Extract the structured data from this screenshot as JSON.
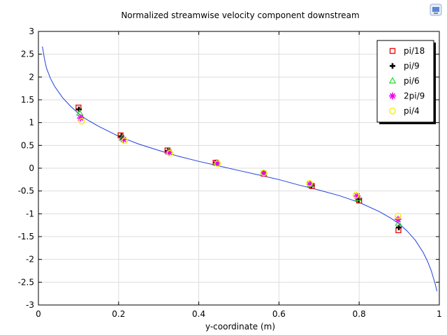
{
  "chart_data": {
    "type": "line",
    "title": "Normalized streamwise velocity component downstream",
    "xlabel": "y-coordinate (m)",
    "ylabel": "",
    "xlim": [
      0,
      1
    ],
    "ylim": [
      -3,
      3
    ],
    "xticks": [
      0,
      0.2,
      0.4,
      0.6,
      0.8,
      1
    ],
    "yticks": [
      -3,
      -2.5,
      -2,
      -1.5,
      -1,
      -0.5,
      0,
      0.5,
      1,
      1.5,
      2,
      2.5,
      3
    ],
    "grid": true,
    "legend_position": "top-right",
    "curve": {
      "color": "#1f3fdc",
      "x": [
        0.01,
        0.015,
        0.02,
        0.03,
        0.04,
        0.06,
        0.08,
        0.1,
        0.12,
        0.15,
        0.2,
        0.25,
        0.3,
        0.35,
        0.4,
        0.45,
        0.5,
        0.55,
        0.6,
        0.65,
        0.7,
        0.75,
        0.8,
        0.85,
        0.88,
        0.9,
        0.92,
        0.94,
        0.96,
        0.97,
        0.98,
        0.99,
        0.994
      ],
      "y": [
        2.67,
        2.4,
        2.2,
        1.97,
        1.8,
        1.55,
        1.36,
        1.2,
        1.07,
        0.92,
        0.7,
        0.53,
        0.39,
        0.26,
        0.15,
        0.05,
        -0.05,
        -0.15,
        -0.25,
        -0.37,
        -0.48,
        -0.6,
        -0.75,
        -0.95,
        -1.1,
        -1.22,
        -1.38,
        -1.58,
        -1.85,
        -2.03,
        -2.25,
        -2.55,
        -2.7
      ]
    },
    "series": [
      {
        "name": "pi/18",
        "marker": "square",
        "color": "#ee1111",
        "x": [
          0.1,
          0.205,
          0.322,
          0.442,
          0.562,
          0.682,
          0.8,
          0.898
        ],
        "y": [
          1.33,
          0.72,
          0.39,
          0.12,
          -0.12,
          -0.39,
          -0.71,
          -1.36
        ]
      },
      {
        "name": "pi/9",
        "marker": "plus",
        "color": "#000000",
        "x": [
          0.101,
          0.207,
          0.323,
          0.443,
          0.562,
          0.681,
          0.799,
          0.899
        ],
        "y": [
          1.29,
          0.7,
          0.38,
          0.12,
          -0.11,
          -0.38,
          -0.69,
          -1.3
        ]
      },
      {
        "name": "pi/6",
        "marker": "triangle",
        "color": "#22dd22",
        "x": [
          0.103,
          0.209,
          0.324,
          0.444,
          0.562,
          0.679,
          0.797,
          0.898
        ],
        "y": [
          1.21,
          0.66,
          0.36,
          0.11,
          -0.11,
          -0.36,
          -0.66,
          -1.21
        ]
      },
      {
        "name": "2pi/9",
        "marker": "asterisk",
        "color": "#ee00ee",
        "x": [
          0.105,
          0.212,
          0.326,
          0.445,
          0.562,
          0.677,
          0.795,
          0.897
        ],
        "y": [
          1.1,
          0.63,
          0.35,
          0.11,
          -0.11,
          -0.35,
          -0.61,
          -1.12
        ]
      },
      {
        "name": "pi/4",
        "marker": "circle",
        "color": "#f2f200",
        "x": [
          0.108,
          0.215,
          0.328,
          0.447,
          0.562,
          0.676,
          0.792,
          0.897
        ],
        "y": [
          1.03,
          0.6,
          0.33,
          0.1,
          -0.1,
          -0.33,
          -0.59,
          -1.05
        ]
      }
    ]
  }
}
